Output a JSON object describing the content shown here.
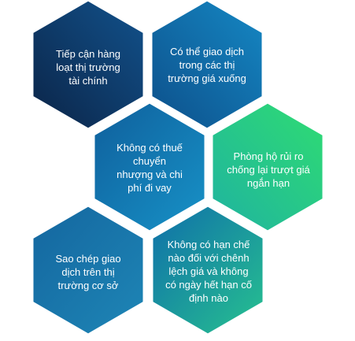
{
  "colors": {
    "hex_dark": "#0e2f59",
    "hex_mid": "#0f6ea8",
    "hex_bright": "#1590c9",
    "hex_green": "#29d47e",
    "text": "#ffffff"
  },
  "hexes": [
    {
      "id": "hex-top-left",
      "label": "Tiếp cận hàng\nloạt thị trường\ntài chính"
    },
    {
      "id": "hex-top-right",
      "label": "Có thể giao dịch\ntrong các thị\ntrường giá xuống"
    },
    {
      "id": "hex-middle-left",
      "label": "Không có thuế\nchuyển\nnhượng và chi\nphí đi vay"
    },
    {
      "id": "hex-middle-right",
      "label": "Phòng hộ rủi ro\nchống lại trượt giá\nngắn hạn"
    },
    {
      "id": "hex-bottom-left",
      "label": "Sao chép giao\ndịch trên thị\ntrường cơ sở"
    },
    {
      "id": "hex-bottom-right",
      "label": "Không có hạn chế\nnào đối với chênh\nlệch giá và không\ncó ngày hết hạn cố\nđịnh nào"
    }
  ]
}
